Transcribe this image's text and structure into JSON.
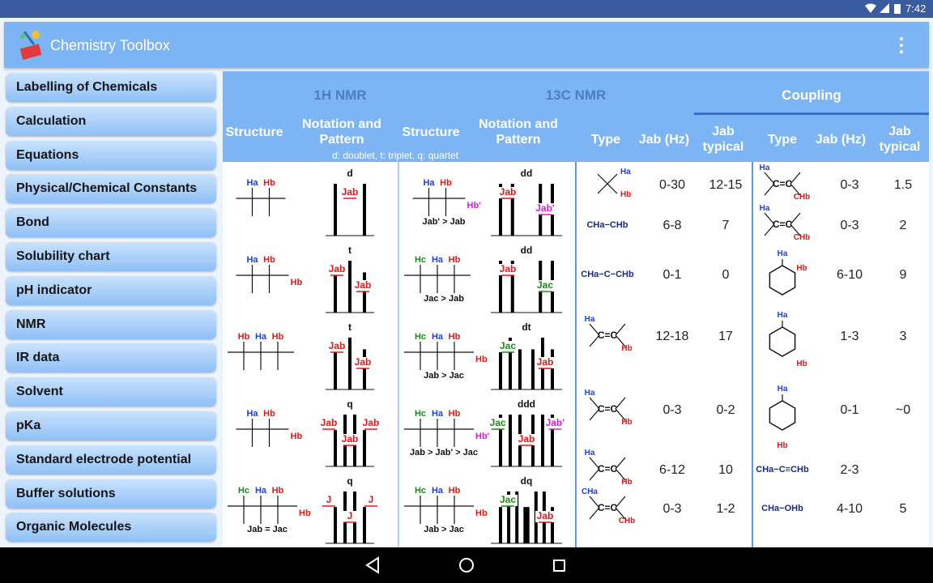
{
  "status_bar": {
    "time": "7:42"
  },
  "app_bar": {
    "title": "Chemistry Toolbox"
  },
  "sidebar": {
    "items": [
      "Labelling of Chemicals",
      "Calculation",
      "Equations",
      "Physical/Chemical Constants",
      "Bond",
      "Solubility chart",
      "pH indicator",
      "NMR",
      "IR data",
      "Solvent",
      "pKa",
      "Standard electrode potential",
      "Buffer solutions",
      "Organic Molecules"
    ]
  },
  "table": {
    "group_headers": [
      "1H NMR",
      "13C NMR",
      "Coupling"
    ],
    "column_headers": [
      "Structure",
      "Notation and Pattern",
      "Structure",
      "Notation and Pattern",
      "Type",
      "Jab (Hz)",
      "Jab typical",
      "Type",
      "Jab (Hz)",
      "Jab typical"
    ],
    "legend": "d: doublet, t: triplet, q: quartet",
    "nmr_left": [
      {
        "top": [
          "Ha",
          "Hb"
        ],
        "pattern": "d",
        "j": [
          "Jab"
        ]
      },
      {
        "top": [
          "Ha",
          "Hb"
        ],
        "right": "Hb",
        "pattern": "t",
        "j": [
          "Jab",
          "Jab"
        ]
      },
      {
        "top": [
          "Hb",
          "Ha",
          "Hb"
        ],
        "pattern": "t",
        "j": [
          "Jab",
          "Jab"
        ]
      },
      {
        "top": [
          "Ha",
          "Hb"
        ],
        "right": "Hb",
        "pattern": "q",
        "j": [
          "Jab",
          "Jab",
          "Jab"
        ]
      },
      {
        "top": [
          "Hc",
          "Ha",
          "Hb"
        ],
        "right": "Hb",
        "note": "Jab = Jac",
        "pattern": "q",
        "j": [
          "J",
          "J",
          "J"
        ]
      }
    ],
    "nmr_right": [
      {
        "top": [
          "Ha",
          "Hb"
        ],
        "right": "Hb'",
        "note": "Jab' > Jab",
        "pattern": "dd",
        "j": [
          "Jab",
          "Jab'"
        ]
      },
      {
        "top": [
          "Hc",
          "Ha",
          "Hb"
        ],
        "note": "Jac > Jab",
        "pattern": "dd",
        "j": [
          "Jab",
          "Jac"
        ]
      },
      {
        "top": [
          "Hc",
          "Ha",
          "Hb"
        ],
        "right": "Hb",
        "note": "Jab > Jac",
        "pattern": "dt",
        "j": [
          "Jac",
          "Jab"
        ]
      },
      {
        "top": [
          "Hc",
          "Ha",
          "Hb"
        ],
        "right": "Hb'",
        "note": "Jab > Jab' > Jac",
        "pattern": "ddd",
        "j": [
          "Jac",
          "Jab",
          "Jab'"
        ]
      },
      {
        "top": [
          "Hc",
          "Ha",
          "Hb"
        ],
        "right": "Hb",
        "note": "Jab > Jac",
        "pattern": "dq",
        "j": [
          "Jac",
          "Jab"
        ]
      }
    ],
    "coupling_left": [
      {
        "labels": [
          "Ha",
          "Hb"
        ],
        "range": "0-30",
        "typical": "12-15"
      },
      {
        "formula": "CHa−CHb",
        "range": "6-8",
        "typical": "7"
      },
      {
        "formula": "CHa−C−CHb",
        "range": "0-1",
        "typical": "0"
      },
      {
        "labels": [
          "Ha",
          "C=C",
          "Hb"
        ],
        "range": "12-18",
        "typical": "17"
      },
      {
        "labels": [
          "C=C",
          "Ha",
          "Hb"
        ],
        "range": "0-3",
        "typical": "0-2"
      },
      {
        "labels": [
          "Ha",
          "C=C",
          "Hb"
        ],
        "range": "6-12",
        "typical": "10"
      },
      {
        "labels": [
          "CHa",
          "C=C",
          "CHb"
        ],
        "range": "0-3",
        "typical": "1-2"
      }
    ],
    "coupling_right": [
      {
        "labels": [
          "Ha",
          "C=C",
          "CHb"
        ],
        "range": "0-3",
        "typical": "1.5"
      },
      {
        "labels": [
          "Ha",
          "C=C",
          "CHb"
        ],
        "range": "0-3",
        "typical": "2"
      },
      {
        "labels": [
          "Ha",
          "Hb"
        ],
        "range": "6-10",
        "typical": "9"
      },
      {
        "labels": [
          "Ha",
          "Hb"
        ],
        "range": "1-3",
        "typical": "3"
      },
      {
        "labels": [
          "Ha",
          "Hb"
        ],
        "range": "0-1",
        "typical": "~0"
      },
      {
        "formula": "CHa−C≡CHb",
        "range": "2-3"
      },
      {
        "formula": "CHa−OHb",
        "range": "4-10",
        "typical": "5"
      }
    ]
  }
}
